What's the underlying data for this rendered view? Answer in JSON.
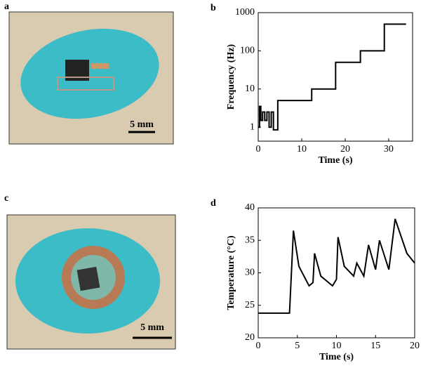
{
  "photos": [
    {
      "label": "a",
      "scale_bar": "5 mm"
    },
    {
      "label": "c",
      "scale_bar": "5 mm"
    }
  ],
  "chart_data": [
    {
      "type": "line",
      "panel_label": "b",
      "x_label": "Time (s)",
      "y_label": "Frequency (Hz)",
      "log_y": true,
      "xlim": [
        0,
        35.5
      ],
      "ylim": [
        0.43,
        1000
      ],
      "xticks": [
        0,
        10,
        20,
        30
      ],
      "yticks": [
        1,
        10,
        100,
        1000
      ],
      "series": [
        {
          "color": "#000000",
          "x": [
            0,
            0.3,
            0.3,
            0.6,
            0.6,
            1,
            1,
            1.5,
            1.5,
            2,
            2,
            2.5,
            2.5,
            3,
            3,
            3.5,
            3.5,
            4.5,
            4.5,
            12.3,
            12.3,
            17.8,
            17.8,
            23.5,
            23.5,
            29,
            29,
            34
          ],
          "values": [
            1,
            1,
            3.5,
            3.5,
            1.5,
            1.5,
            2.5,
            2.5,
            1.5,
            1.5,
            2.5,
            2.5,
            1,
            1,
            2.5,
            2.5,
            0.85,
            0.85,
            5,
            5,
            10,
            10,
            50,
            50,
            100,
            100,
            500,
            500
          ]
        }
      ]
    },
    {
      "type": "line",
      "panel_label": "d",
      "x_label": "Time (s)",
      "y_label": "Temperature (°C)",
      "log_y": false,
      "xlim": [
        0,
        20
      ],
      "ylim": [
        20,
        40
      ],
      "xticks": [
        0,
        5,
        10,
        15,
        20
      ],
      "yticks": [
        20,
        25,
        30,
        35,
        40
      ],
      "series": [
        {
          "color": "#000000",
          "x": [
            0,
            4,
            4.5,
            5.2,
            6.5,
            7,
            7.2,
            8,
            9.5,
            10,
            10.2,
            11,
            12.2,
            12.6,
            13.5,
            14.1,
            15,
            15.5,
            16.7,
            17.5,
            19,
            20
          ],
          "values": [
            23.8,
            23.8,
            36.5,
            31,
            28,
            28.5,
            33,
            29.5,
            28,
            29,
            35.5,
            31,
            29.5,
            31.5,
            29.5,
            34.3,
            30.5,
            35,
            30.5,
            38.3,
            33,
            31.5
          ]
        }
      ]
    }
  ]
}
